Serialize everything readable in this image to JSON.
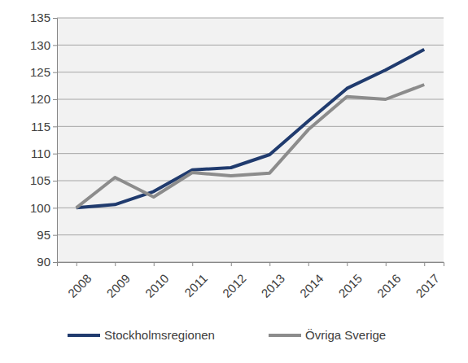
{
  "chart_data": {
    "type": "line",
    "categories": [
      "2008",
      "2009",
      "2010",
      "2011",
      "2012",
      "2013",
      "2014",
      "2015",
      "2016",
      "2017"
    ],
    "series": [
      {
        "name": "Stockholmsregionen",
        "color": "#203b6e",
        "values": [
          100,
          100.6,
          103,
          107,
          107.4,
          109.8,
          116,
          122,
          125.4,
          129.2
        ]
      },
      {
        "name": "Övriga Sverige",
        "color": "#8c8c8c",
        "values": [
          100,
          105.6,
          102,
          106.5,
          105.9,
          106.4,
          114.4,
          120.5,
          120,
          122.7
        ]
      }
    ],
    "ylim": [
      90,
      135
    ],
    "yticks": [
      90,
      95,
      100,
      105,
      110,
      115,
      120,
      125,
      130,
      135
    ],
    "grid": true,
    "legend": "bottom"
  }
}
